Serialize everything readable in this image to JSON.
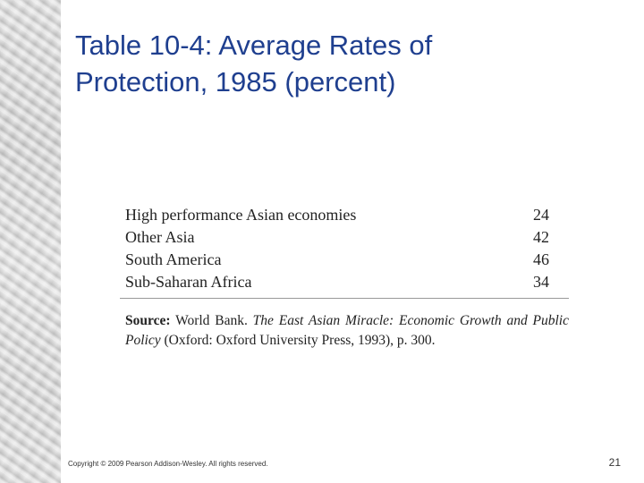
{
  "slide": {
    "title_lines": [
      "Table 10-4: Average Rates of",
      "Protection, 1985 (percent)"
    ],
    "table": {
      "rows": [
        {
          "region": "High performance Asian economies",
          "value": "24"
        },
        {
          "region": "Other Asia",
          "value": "42"
        },
        {
          "region": "South America",
          "value": "46"
        },
        {
          "region": "Sub-Saharan Africa",
          "value": "34"
        }
      ]
    },
    "source": {
      "label": "Source:",
      "org": "World Bank.",
      "book_title": "The East Asian Miracle: Economic Growth and Public Policy",
      "publisher": "(Oxford: Oxford University Press, 1993), p. 300."
    },
    "copyright": "Copyright © 2009 Pearson Addison-Wesley. All rights reserved.",
    "page_number": "21"
  }
}
